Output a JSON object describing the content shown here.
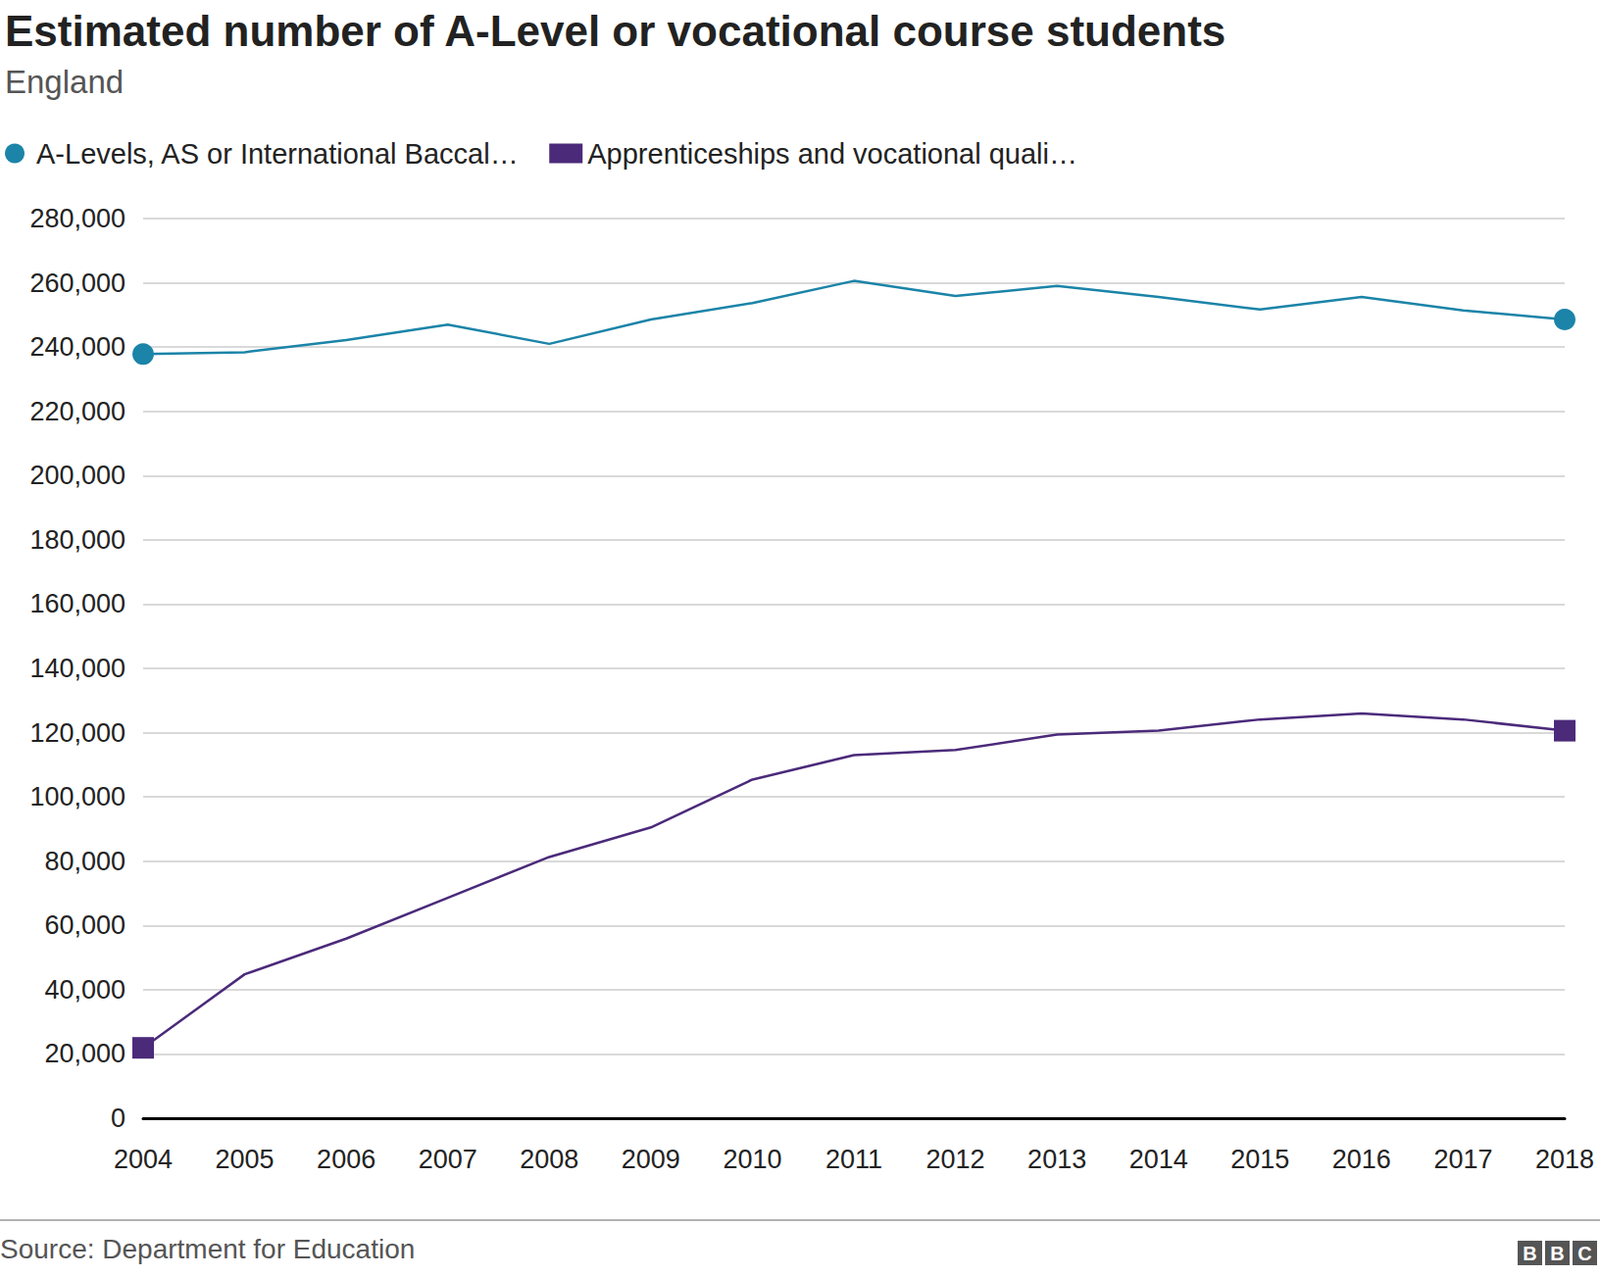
{
  "chart_data": {
    "type": "line",
    "title": "Estimated number of A-Level or vocational course students",
    "subtitle": "England",
    "source": "Source: Department for Education",
    "logo": "BBC",
    "categories": [
      "2004",
      "2005",
      "2006",
      "2007",
      "2008",
      "2009",
      "2010",
      "2011",
      "2012",
      "2013",
      "2014",
      "2015",
      "2016",
      "2017",
      "2018"
    ],
    "series": [
      {
        "name": "A-Levels, AS or International Baccal…",
        "color": "#1b84a8",
        "marker": "circle",
        "values": [
          237800,
          238400,
          242200,
          247000,
          241000,
          248600,
          253700,
          260600,
          255900,
          259000,
          255600,
          251700,
          255600,
          251400,
          248600
        ]
      },
      {
        "name": "Apprenticeships and vocational quali…",
        "color": "#4b2a7a",
        "marker": "square",
        "values": [
          21900,
          44800,
          55900,
          68600,
          81300,
          90500,
          105400,
          113000,
          114600,
          119400,
          120600,
          124100,
          126000,
          124100,
          120600
        ]
      }
    ],
    "ylim": [
      0,
      280000
    ],
    "yticks": [
      0,
      {
        "value": 20000,
        "label": "20,000"
      },
      {
        "value": 40000,
        "label": "40,000"
      },
      {
        "value": 60000,
        "label": "60,000"
      },
      {
        "value": 80000,
        "label": "80,000"
      },
      {
        "value": 100000,
        "label": "100,000"
      },
      {
        "value": 120000,
        "label": "120,000"
      },
      {
        "value": 140000,
        "label": "140,000"
      },
      {
        "value": 160000,
        "label": "160,000"
      },
      {
        "value": 180000,
        "label": "180,000"
      },
      {
        "value": 200000,
        "label": "200,000"
      },
      {
        "value": 220000,
        "label": "220,000"
      },
      {
        "value": 240000,
        "label": "240,000"
      },
      {
        "value": 260000,
        "label": "260,000"
      },
      {
        "value": 280000,
        "label": "280,000"
      }
    ],
    "grid": true,
    "legend": "top-left"
  }
}
